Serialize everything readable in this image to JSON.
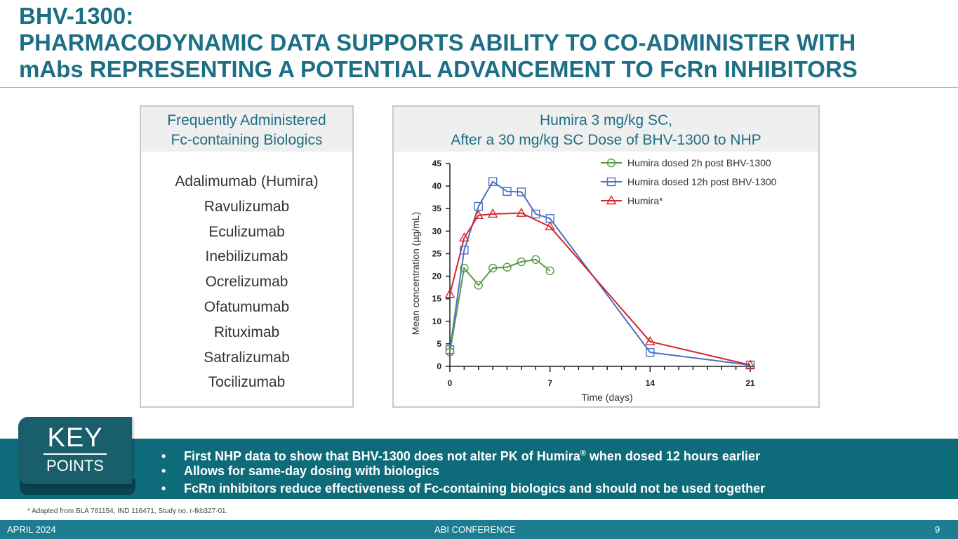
{
  "title": {
    "line1": "BHV-1300:",
    "line2": "PHARMACODYNAMIC DATA SUPPORTS ABILITY TO CO-ADMINISTER WITH",
    "line3": "mAbs REPRESENTING A POTENTIAL ADVANCEMENT TO FcRn INHIBITORS"
  },
  "left_panel": {
    "heading_line1": "Frequently Administered",
    "heading_line2": "Fc-containing Biologics",
    "items": [
      "Adalimumab (Humira)",
      "Ravulizumab",
      "Eculizumab",
      "Inebilizumab",
      "Ocrelizumab",
      "Ofatumumab",
      "Rituximab",
      "Satralizumab",
      "Tocilizumab"
    ]
  },
  "chart_panel": {
    "heading_line1": "Humira 3 mg/kg SC,",
    "heading_line2": "After a 30 mg/kg SC Dose of BHV-1300 to NHP"
  },
  "chart_data": {
    "type": "line",
    "title": "Humira 3 mg/kg SC, After a 30 mg/kg SC Dose of BHV-1300 to NHP",
    "xlabel": "Time (days)",
    "ylabel": "Mean concentration (µg/mL)",
    "xlim": [
      0,
      21
    ],
    "ylim": [
      0,
      45
    ],
    "xticks": [
      0,
      7,
      14,
      21
    ],
    "yticks": [
      0,
      5,
      10,
      15,
      20,
      25,
      30,
      35,
      40,
      45
    ],
    "legend_position": "top-right",
    "series": [
      {
        "name": "Humira dosed 2h post BHV-1300",
        "color": "#5b9a45",
        "marker": "circle",
        "x": [
          0,
          1,
          2,
          3,
          4,
          5,
          6,
          7
        ],
        "y": [
          3.2,
          21.8,
          18.0,
          21.8,
          22.0,
          23.2,
          23.7,
          21.2
        ]
      },
      {
        "name": "Humira dosed 12h post BHV-1300",
        "color": "#4a6fc4",
        "marker": "square",
        "x": [
          0,
          1,
          2,
          3,
          4,
          5,
          6,
          7,
          14,
          21
        ],
        "y": [
          3.7,
          25.8,
          35.5,
          41.0,
          38.8,
          38.7,
          33.8,
          32.8,
          3.1,
          0.3
        ]
      },
      {
        "name": "Humira*",
        "color": "#d6252a",
        "marker": "triangle",
        "x": [
          0,
          1,
          2,
          3,
          5,
          7,
          14,
          21
        ],
        "y": [
          16.0,
          28.5,
          33.5,
          33.8,
          34.0,
          31.0,
          5.5,
          0.3
        ]
      }
    ]
  },
  "key_points": {
    "tag_line1": "KEY",
    "tag_line2": "POINTS",
    "bullet_char": "•",
    "bullet1_a": "First NHP data to show that BHV-1300 does not alter PK of Humira",
    "bullet1_sup": "®",
    "bullet1_b": " when dosed 12 hours earlier",
    "bullet2": "Allows for same-day dosing with biologics",
    "bullet3": "FcRn inhibitors reduce effectiveness of Fc-containing biologics and should not be used together"
  },
  "footnote": "* Adapted from BLA 761154, IND 116471, Study no. r-fkb327-01.",
  "footer": {
    "date": "APRIL 2024",
    "event": "ABI CONFERENCE",
    "page": "9"
  }
}
